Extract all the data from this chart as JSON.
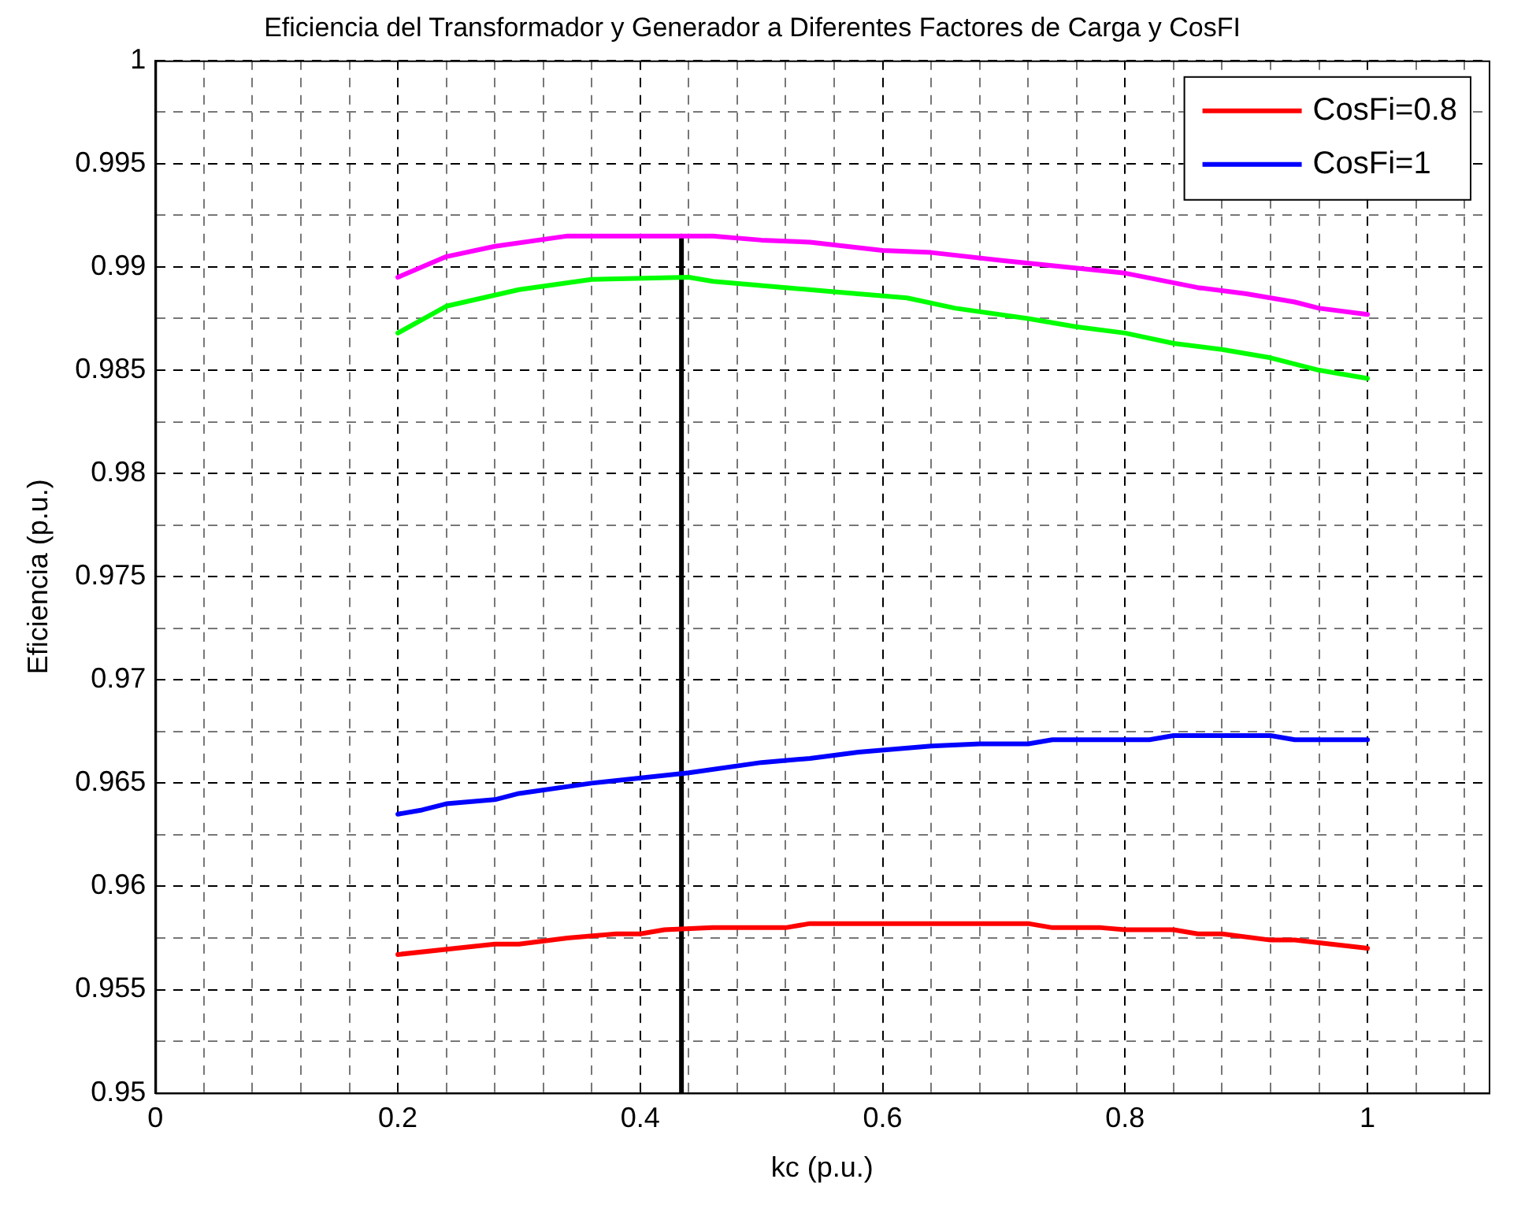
{
  "chart_data": {
    "type": "line",
    "title": "Eficiencia del Transformador y Generador a Diferentes Factores de Carga y CosFI",
    "xlabel": "kc (p.u.)",
    "ylabel": "Eficiencia (p.u.)",
    "xlim": [
      0,
      1.1
    ],
    "xticks": [
      0,
      {
        "value": 0.04,
        "label": null
      },
      {
        "value": 0.08,
        "label": null
      },
      {
        "value": 0.12,
        "label": null
      },
      {
        "value": 0.16,
        "label": null
      },
      0.2,
      {
        "value": 0.24,
        "label": null
      },
      {
        "value": 0.28,
        "label": null
      },
      {
        "value": 0.32,
        "label": null
      },
      {
        "value": 0.36,
        "label": null
      },
      0.4,
      {
        "value": 0.44,
        "label": null
      },
      {
        "value": 0.48,
        "label": null
      },
      {
        "value": 0.52,
        "label": null
      },
      {
        "value": 0.56,
        "label": null
      },
      0.6,
      {
        "value": 0.64,
        "label": null
      },
      {
        "value": 0.68,
        "label": null
      },
      {
        "value": 0.72,
        "label": null
      },
      {
        "value": 0.76,
        "label": null
      },
      0.8,
      {
        "value": 0.84,
        "label": null
      },
      {
        "value": 0.88,
        "label": null
      },
      {
        "value": 0.92,
        "label": null
      },
      {
        "value": 0.96,
        "label": null
      },
      1,
      {
        "value": 1.04,
        "label": null
      },
      {
        "value": 1.08,
        "label": null
      }
    ],
    "ylim": [
      0.95,
      1
    ],
    "yticks": [
      0.95,
      {
        "value": 0.9525,
        "label": null
      },
      0.955,
      {
        "value": 0.9575,
        "label": null
      },
      0.96,
      {
        "value": 0.9625,
        "label": null
      },
      0.965,
      {
        "value": 0.9675,
        "label": null
      },
      0.97,
      {
        "value": 0.9725,
        "label": null
      },
      0.975,
      {
        "value": 0.9775,
        "label": null
      },
      0.98,
      {
        "value": 0.9825,
        "label": null
      },
      0.985,
      {
        "value": 0.9875,
        "label": null
      },
      0.99,
      {
        "value": 0.9925,
        "label": null
      },
      0.995,
      {
        "value": 0.9975,
        "label": null
      },
      1
    ],
    "grid": true,
    "legend": "top right",
    "line_style": "solid",
    "marker": "none",
    "series": [
      {
        "name": "CosFi=0.8",
        "color": "#ff0000",
        "x": [
          0.2,
          0.28,
          0.3,
          0.34,
          0.38,
          0.4,
          0.42,
          0.46,
          0.52,
          0.54,
          0.72,
          0.74,
          0.78,
          0.8,
          0.84,
          0.86,
          0.88,
          0.92,
          0.94,
          1.0
        ],
        "values": [
          0.9567,
          0.9572,
          0.9572,
          0.9575,
          0.9577,
          0.9577,
          0.9579,
          0.958,
          0.958,
          0.9582,
          0.9582,
          0.958,
          0.958,
          0.9579,
          0.9579,
          0.9577,
          0.9577,
          0.9574,
          0.9574,
          0.957
        ]
      },
      {
        "name": "CosFi=1",
        "color": "#0000ff",
        "x": [
          0.2,
          0.22,
          0.24,
          0.28,
          0.3,
          0.36,
          0.44,
          0.5,
          0.54,
          0.58,
          0.64,
          0.68,
          0.72,
          0.74,
          0.82,
          0.84,
          0.92,
          0.94,
          1.0
        ],
        "values": [
          0.9635,
          0.9637,
          0.964,
          0.9642,
          0.9645,
          0.965,
          0.9655,
          0.966,
          0.9662,
          0.9665,
          0.9668,
          0.9669,
          0.9669,
          0.9671,
          0.9671,
          0.9673,
          0.9673,
          0.9671,
          0.9671
        ]
      },
      {
        "color": "#00ff00",
        "x": [
          0.2,
          0.24,
          0.3,
          0.36,
          0.44,
          0.46,
          0.52,
          0.56,
          0.62,
          0.66,
          0.72,
          0.76,
          0.8,
          0.84,
          0.88,
          0.92,
          0.96,
          1.0
        ],
        "values": [
          0.9868,
          0.9881,
          0.9889,
          0.9894,
          0.9895,
          0.9893,
          0.989,
          0.9888,
          0.9885,
          0.988,
          0.9875,
          0.9871,
          0.9868,
          0.9863,
          0.986,
          0.9856,
          0.985,
          0.9846
        ]
      },
      {
        "color": "#ff00ff",
        "x": [
          0.2,
          0.24,
          0.28,
          0.34,
          0.44,
          0.46,
          0.5,
          0.54,
          0.6,
          0.64,
          0.7,
          0.8,
          0.86,
          0.9,
          0.94,
          0.96,
          1.0
        ],
        "values": [
          0.9895,
          0.9905,
          0.991,
          0.9915,
          0.9915,
          0.9915,
          0.9913,
          0.9912,
          0.9908,
          0.9907,
          0.9903,
          0.9897,
          0.989,
          0.9887,
          0.9883,
          0.988,
          0.9877
        ]
      },
      {
        "color": "#000000",
        "x": [
          0.434,
          0.434
        ],
        "values": [
          0.95,
          0.9915
        ]
      }
    ]
  }
}
